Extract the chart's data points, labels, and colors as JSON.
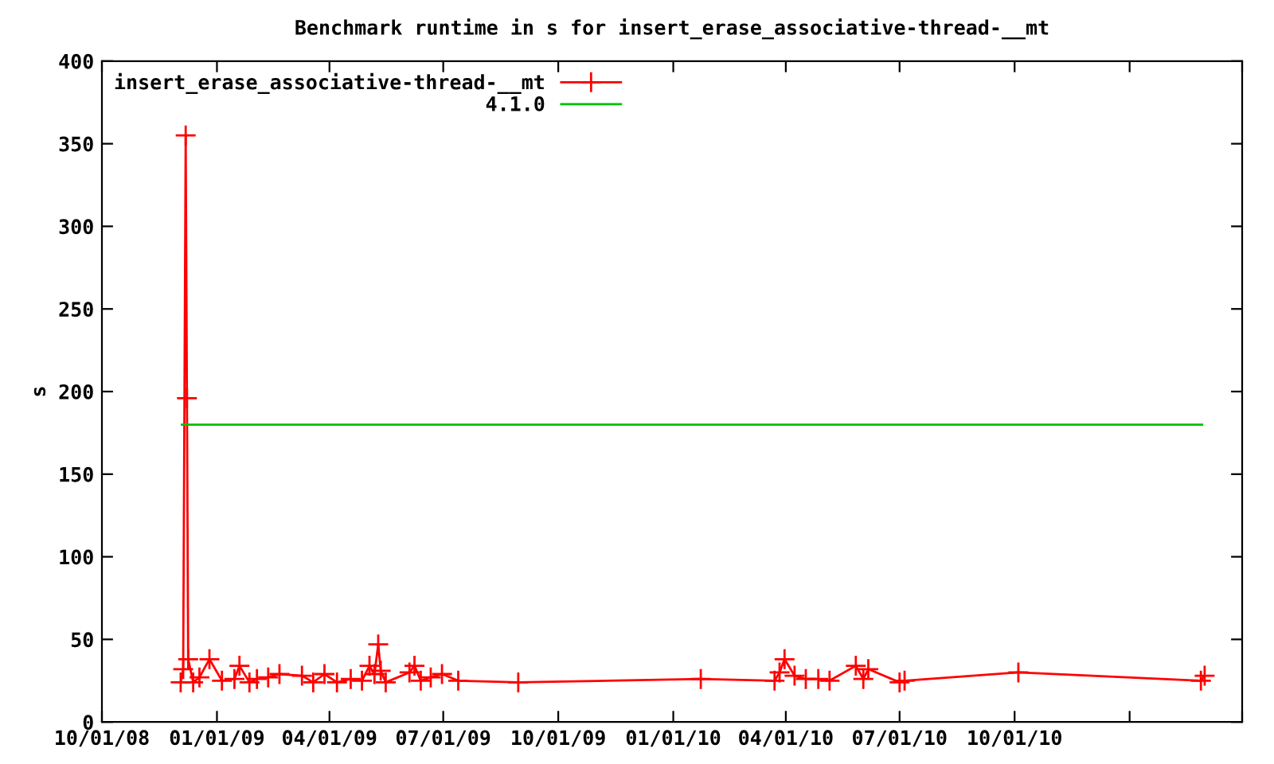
{
  "chart_data": {
    "type": "line",
    "title": "Benchmark runtime in s for insert_erase_associative-thread-__mt",
    "ylabel": "s",
    "xlim": [
      "2008-10-01",
      "2011-04-01"
    ],
    "xticks": [
      {
        "value": "2008-10-01",
        "label": "10/01/08"
      },
      {
        "value": "2009-01-01",
        "label": "01/01/09"
      },
      {
        "value": "2009-04-01",
        "label": "04/01/09"
      },
      {
        "value": "2009-07-01",
        "label": "07/01/09"
      },
      {
        "value": "2009-10-01",
        "label": "10/01/09"
      },
      {
        "value": "2010-01-01",
        "label": "01/01/10"
      },
      {
        "value": "2010-04-01",
        "label": "04/01/10"
      },
      {
        "value": "2010-07-01",
        "label": "07/01/10"
      },
      {
        "value": "2010-10-01",
        "label": "10/01/10"
      },
      {
        "value": "2011-01-01",
        "label": null
      },
      {
        "value": "2011-04-01",
        "label": null
      }
    ],
    "ylim": [
      0,
      400
    ],
    "yticks": [
      0,
      50,
      100,
      150,
      200,
      250,
      300,
      350,
      400
    ],
    "grid": false,
    "legend": "top left",
    "series": [
      {
        "name": "insert_erase_associative-thread-__mt",
        "color": "#ff0000",
        "marker": "cross",
        "x": [
          "2008-12-03",
          "2008-12-05",
          "2008-12-07",
          "2008-12-08",
          "2008-12-09",
          "2008-12-13",
          "2008-12-18",
          "2008-12-26",
          "2009-01-05",
          "2009-01-15",
          "2009-01-19",
          "2009-01-27",
          "2009-02-02",
          "2009-02-11",
          "2009-02-20",
          "2009-03-10",
          "2009-03-19",
          "2009-03-28",
          "2009-04-07",
          "2009-04-18",
          "2009-04-27",
          "2009-05-03",
          "2009-05-07",
          "2009-05-10",
          "2009-05-12",
          "2009-05-16",
          "2009-06-04",
          "2009-06-08",
          "2009-06-13",
          "2009-06-21",
          "2009-06-30",
          "2009-07-13",
          "2009-08-30",
          "2010-01-23",
          "2010-03-23",
          "2010-03-27",
          "2010-03-31",
          "2010-04-08",
          "2010-04-17",
          "2010-04-27",
          "2010-05-06",
          "2010-05-27",
          "2010-06-02",
          "2010-06-06",
          "2010-07-01",
          "2010-07-05",
          "2010-10-04",
          "2011-02-27",
          "2011-03-02"
        ],
        "values": [
          24,
          32,
          355,
          196,
          38,
          24,
          27,
          38,
          25,
          26,
          34,
          24,
          26,
          27,
          29,
          28,
          24,
          29,
          24,
          26,
          25,
          34,
          29,
          47,
          31,
          24,
          30,
          34,
          25,
          27,
          29,
          25,
          24,
          26,
          25,
          30,
          38,
          28,
          26,
          26,
          25,
          34,
          26,
          32,
          24,
          25,
          30,
          25,
          28
        ]
      },
      {
        "name": "4.1.0",
        "color": "#00c000",
        "marker": "none",
        "x": [
          "2008-12-04",
          "2011-02-28"
        ],
        "values": [
          180,
          180
        ]
      }
    ]
  }
}
